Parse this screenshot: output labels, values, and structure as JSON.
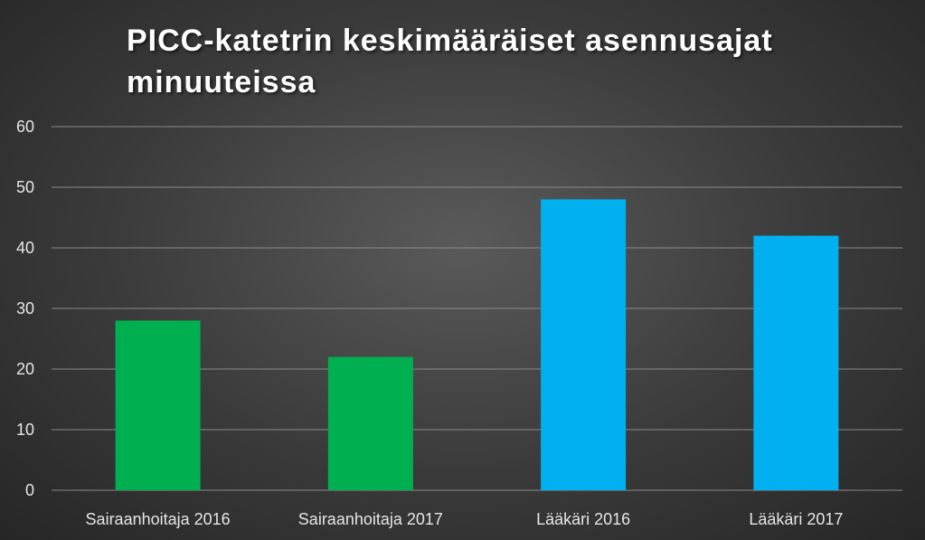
{
  "chart_data": {
    "type": "bar",
    "title": "PICC-katetrin keskimääräiset asennusajat minuuteissa",
    "xlabel": "",
    "ylabel": "",
    "categories": [
      "Sairaanhoitaja 2016",
      "Sairaanhoitaja 2017",
      "Lääkäri 2016",
      "Lääkäri 2017"
    ],
    "values": [
      28,
      22,
      48,
      42
    ],
    "colors": [
      "#00b050",
      "#00b050",
      "#00b0f0",
      "#00b0f0"
    ],
    "ylim": [
      0,
      60
    ],
    "yticks": [
      0,
      10,
      20,
      30,
      40,
      50,
      60
    ],
    "grid": true,
    "legend": "none"
  }
}
